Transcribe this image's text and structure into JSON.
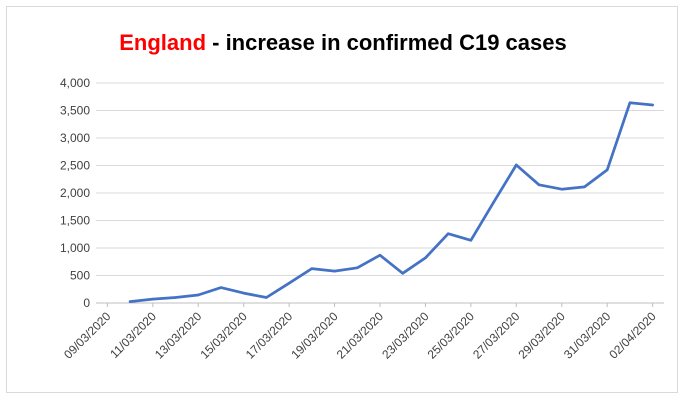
{
  "chart_data": {
    "type": "line",
    "title_highlight": "England",
    "title_rest": " - increase in confirmed C19 cases",
    "colors": {
      "line": "#4472c4",
      "highlight": "#ff0000",
      "grid": "#d9d9d9"
    },
    "ylim": [
      0,
      4000
    ],
    "y_ticks": [
      "0",
      "500",
      "1,000",
      "1,500",
      "2,000",
      "2,500",
      "3,000",
      "3,500",
      "4,000"
    ],
    "x_ticks": [
      "09/03/2020",
      "11/03/2020",
      "13/03/2020",
      "15/03/2020",
      "17/03/2020",
      "19/03/2020",
      "21/03/2020",
      "23/03/2020",
      "25/03/2020",
      "27/03/2020",
      "29/03/2020",
      "31/03/2020",
      "02/04/2020"
    ],
    "x": [
      "10/03/2020",
      "11/03/2020",
      "12/03/2020",
      "13/03/2020",
      "14/03/2020",
      "15/03/2020",
      "16/03/2020",
      "17/03/2020",
      "18/03/2020",
      "19/03/2020",
      "20/03/2020",
      "21/03/2020",
      "22/03/2020",
      "23/03/2020",
      "24/03/2020",
      "25/03/2020",
      "26/03/2020",
      "27/03/2020",
      "28/03/2020",
      "29/03/2020",
      "30/03/2020",
      "31/03/2020",
      "01/04/2020",
      "02/04/2020"
    ],
    "series": [
      {
        "values": [
          25,
          70,
          100,
          145,
          280,
          180,
          100,
          360,
          625,
          580,
          640,
          870,
          540,
          820,
          1260,
          1140,
          1830,
          2510,
          2150,
          2070,
          2110,
          2420,
          3640,
          3600
        ]
      }
    ],
    "grid": true,
    "legend": "none"
  }
}
